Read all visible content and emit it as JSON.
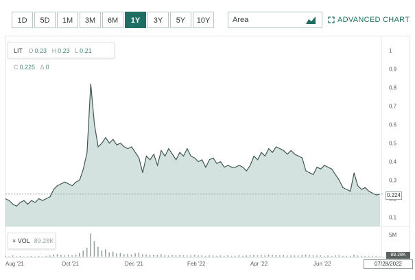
{
  "toolbar": {
    "ranges": [
      "1D",
      "5D",
      "1M",
      "3M",
      "6M",
      "1Y",
      "3Y",
      "5Y",
      "10Y"
    ],
    "active_range": "1Y",
    "chart_type": "Area",
    "advanced_label": "ADVANCED CHART"
  },
  "legend": {
    "symbol": "LIT",
    "o_label": "O",
    "o_value": "0.23",
    "h_label": "H",
    "h_value": "0.23",
    "l_label": "L",
    "l_value": "0.21",
    "c_label": "C",
    "c_value": "0.225",
    "delta_label": "Δ",
    "delta_value": "0"
  },
  "volume": {
    "label": "VOL",
    "value": "89.28K",
    "axis_tick": "5M",
    "last_tag": "89.28K"
  },
  "price_tag": "0.224",
  "date_box": "07/28/2022",
  "colors": {
    "accent": "#1f6e63",
    "area_fill": "#d3e1df",
    "line": "#3f5653",
    "volume": "#96a3a1"
  },
  "chart_data": {
    "type": "area",
    "y_ticks": [
      "0.1",
      "0.2",
      "0.3",
      "0.4",
      "0.5",
      "0.6",
      "0.7",
      "0.8",
      "0.9",
      "1"
    ],
    "ylim": [
      0.05,
      1.05
    ],
    "x_ticks": [
      "Aug '21",
      "Oct '21",
      "Dec '21",
      "Feb '22",
      "Apr '22",
      "Jun '22"
    ],
    "series": [
      {
        "values": [
          0.2,
          0.19,
          0.17,
          0.16,
          0.18,
          0.19,
          0.17,
          0.19,
          0.18,
          0.2,
          0.19,
          0.2,
          0.21,
          0.25,
          0.27,
          0.28,
          0.29,
          0.28,
          0.27,
          0.29,
          0.3,
          0.36,
          0.45,
          0.82,
          0.6,
          0.48,
          0.5,
          0.53,
          0.5,
          0.52,
          0.49,
          0.5,
          0.48,
          0.47,
          0.48,
          0.45,
          0.42,
          0.34,
          0.43,
          0.41,
          0.44,
          0.38,
          0.46,
          0.43,
          0.47,
          0.44,
          0.41,
          0.45,
          0.43,
          0.47,
          0.43,
          0.42,
          0.4,
          0.41,
          0.37,
          0.41,
          0.42,
          0.39,
          0.4,
          0.37,
          0.38,
          0.37,
          0.37,
          0.38,
          0.37,
          0.35,
          0.38,
          0.43,
          0.41,
          0.45,
          0.43,
          0.47,
          0.45,
          0.48,
          0.47,
          0.46,
          0.44,
          0.46,
          0.44,
          0.43,
          0.42,
          0.35,
          0.34,
          0.33,
          0.37,
          0.36,
          0.38,
          0.37,
          0.36,
          0.33,
          0.3,
          0.26,
          0.25,
          0.24,
          0.34,
          0.27,
          0.25,
          0.26,
          0.24,
          0.23,
          0.22,
          0.225
        ]
      }
    ],
    "volume_values": [
      0.2,
      0.1,
      0.3,
      0.1,
      0.2,
      0.1,
      0.1,
      0.2,
      0.1,
      0.2,
      0.1,
      0.2,
      0.3,
      0.5,
      0.6,
      0.4,
      0.3,
      0.4,
      0.3,
      0.5,
      0.9,
      1.5,
      2.2,
      5.6,
      3.8,
      2.4,
      1.5,
      1.8,
      1.0,
      1.2,
      0.8,
      0.9,
      0.6,
      0.7,
      0.5,
      0.8,
      1.0,
      0.6,
      0.5,
      0.4,
      0.5,
      0.4,
      0.6,
      0.4,
      0.3,
      0.4,
      0.3,
      0.4,
      0.3,
      0.3,
      0.3,
      0.4,
      0.3,
      0.3,
      0.2,
      0.3,
      0.3,
      0.2,
      0.3,
      0.2,
      0.3,
      0.2,
      0.2,
      0.3,
      0.2,
      0.3,
      0.3,
      0.4,
      0.3,
      0.4,
      0.3,
      0.5,
      0.4,
      0.4,
      0.3,
      0.4,
      0.3,
      0.3,
      0.3,
      0.3,
      0.4,
      0.5,
      0.4,
      0.3,
      0.3,
      0.3,
      0.2,
      0.3,
      0.2,
      0.3,
      0.3,
      0.2,
      0.2,
      0.2,
      0.5,
      0.3,
      0.2,
      0.2,
      0.2,
      0.2,
      0.2,
      0.1
    ],
    "volume_ylim": [
      0,
      6
    ]
  }
}
